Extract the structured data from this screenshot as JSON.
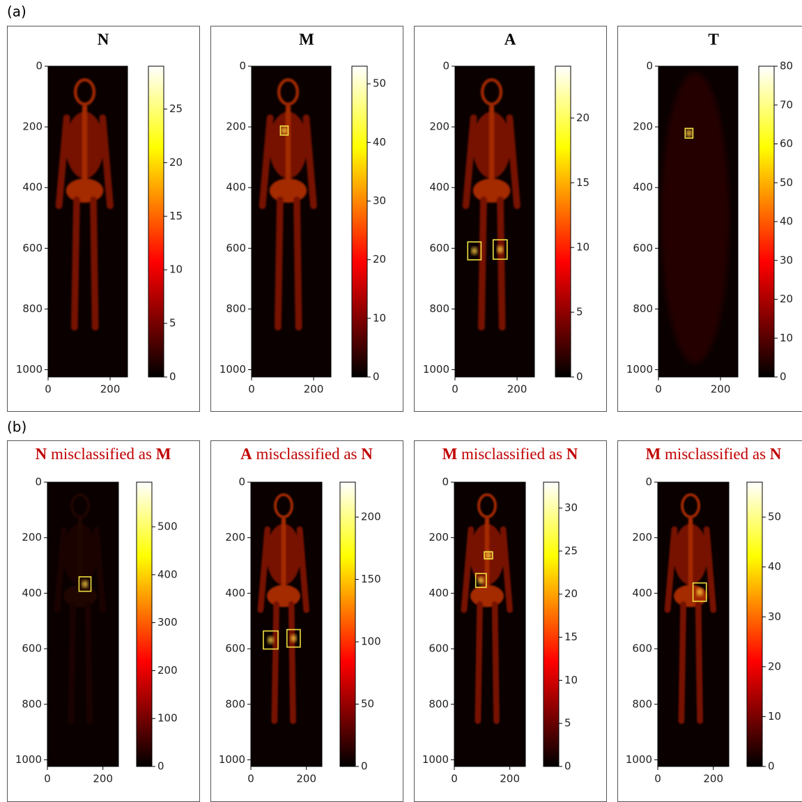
{
  "panel_labels": [
    "(a)",
    "(b)"
  ],
  "chart_data": [
    {
      "type": "heatmap",
      "title": [
        "N"
      ],
      "title_color": "#000000",
      "colormap": "hot",
      "xlim": [
        0,
        256
      ],
      "ylim": [
        1024,
        0
      ],
      "xticks": [
        0,
        200
      ],
      "yticks": [
        0,
        200,
        400,
        600,
        800,
        1000
      ],
      "clim": [
        0,
        29
      ],
      "cticks": [
        0,
        5,
        10,
        15,
        20,
        25
      ],
      "boxes": []
    },
    {
      "type": "heatmap",
      "title": [
        "M"
      ],
      "title_color": "#000000",
      "colormap": "hot",
      "xlim": [
        0,
        256
      ],
      "ylim": [
        1024,
        0
      ],
      "xticks": [
        0,
        200
      ],
      "yticks": [
        0,
        200,
        400,
        600,
        800,
        1000
      ],
      "clim": [
        0,
        53
      ],
      "cticks": [
        0,
        10,
        20,
        30,
        40,
        50
      ],
      "boxes": [
        {
          "x": [
            93,
            118
          ],
          "y": [
            197,
            227
          ]
        }
      ]
    },
    {
      "type": "heatmap",
      "title": [
        "A"
      ],
      "title_color": "#000000",
      "colormap": "hot",
      "xlim": [
        0,
        256
      ],
      "ylim": [
        1024,
        0
      ],
      "xticks": [
        0,
        200
      ],
      "yticks": [
        0,
        200,
        400,
        600,
        800,
        1000
      ],
      "clim": [
        0,
        24
      ],
      "cticks": [
        0,
        5,
        10,
        15,
        20
      ],
      "boxes": [
        {
          "x": [
            41,
            84
          ],
          "y": [
            579,
            638
          ]
        },
        {
          "x": [
            123,
            168
          ],
          "y": [
            572,
            636
          ]
        }
      ]
    },
    {
      "type": "heatmap",
      "title": [
        "T"
      ],
      "title_color": "#000000",
      "colormap": "hot",
      "xlim": [
        0,
        256
      ],
      "ylim": [
        1024,
        0
      ],
      "xticks": [
        0,
        200
      ],
      "yticks": [
        0,
        200,
        400,
        600,
        800,
        1000
      ],
      "clim": [
        0,
        80
      ],
      "cticks": [
        0,
        10,
        20,
        30,
        40,
        50,
        60,
        70,
        80
      ],
      "boxes": [
        {
          "x": [
            86,
            111
          ],
          "y": [
            205,
            237
          ]
        }
      ]
    },
    {
      "type": "heatmap",
      "title": [
        "N",
        " misclassified as ",
        "M"
      ],
      "title_color": "#c00000",
      "colormap": "hot",
      "xlim": [
        0,
        256
      ],
      "ylim": [
        1024,
        0
      ],
      "xticks": [
        0,
        200
      ],
      "yticks": [
        0,
        200,
        400,
        600,
        800,
        1000
      ],
      "clim": [
        0,
        593
      ],
      "cticks": [
        0,
        100,
        200,
        300,
        400,
        500
      ],
      "boxes": [
        {
          "x": [
            114,
            157
          ],
          "y": [
            341,
            393
          ]
        }
      ]
    },
    {
      "type": "heatmap",
      "title": [
        "A",
        " misclassified as ",
        "N"
      ],
      "title_color": "#c00000",
      "colormap": "hot",
      "xlim": [
        0,
        256
      ],
      "ylim": [
        1024,
        0
      ],
      "xticks": [
        0,
        200
      ],
      "yticks": [
        0,
        200,
        400,
        600,
        800,
        1000
      ],
      "clim": [
        0,
        228
      ],
      "cticks": [
        0,
        50,
        100,
        150,
        200
      ],
      "boxes": [
        {
          "x": [
            45,
            98
          ],
          "y": [
            536,
            601
          ]
        },
        {
          "x": [
            130,
            178
          ],
          "y": [
            531,
            594
          ]
        }
      ]
    },
    {
      "type": "heatmap",
      "title": [
        "M",
        " misclassified as ",
        "N"
      ],
      "title_color": "#c00000",
      "colormap": "hot",
      "xlim": [
        0,
        256
      ],
      "ylim": [
        1024,
        0
      ],
      "xticks": [
        0,
        200
      ],
      "yticks": [
        0,
        200,
        400,
        600,
        800,
        1000
      ],
      "clim": [
        0,
        33
      ],
      "cticks": [
        0,
        5,
        10,
        15,
        20,
        25,
        30
      ],
      "boxes": [
        {
          "x": [
            108,
            138
          ],
          "y": [
            251,
            276
          ]
        },
        {
          "x": [
            77,
            115
          ],
          "y": [
            329,
            379
          ]
        }
      ]
    },
    {
      "type": "heatmap",
      "title": [
        "M",
        " misclassified as ",
        "N"
      ],
      "title_color": "#c00000",
      "colormap": "hot",
      "xlim": [
        0,
        256
      ],
      "ylim": [
        1024,
        0
      ],
      "xticks": [
        0,
        200
      ],
      "yticks": [
        0,
        200,
        400,
        600,
        800,
        1000
      ],
      "clim": [
        0,
        57
      ],
      "cticks": [
        0,
        10,
        20,
        30,
        40,
        50
      ],
      "boxes": [
        {
          "x": [
            127,
            175
          ],
          "y": [
            363,
            429
          ]
        }
      ]
    }
  ]
}
